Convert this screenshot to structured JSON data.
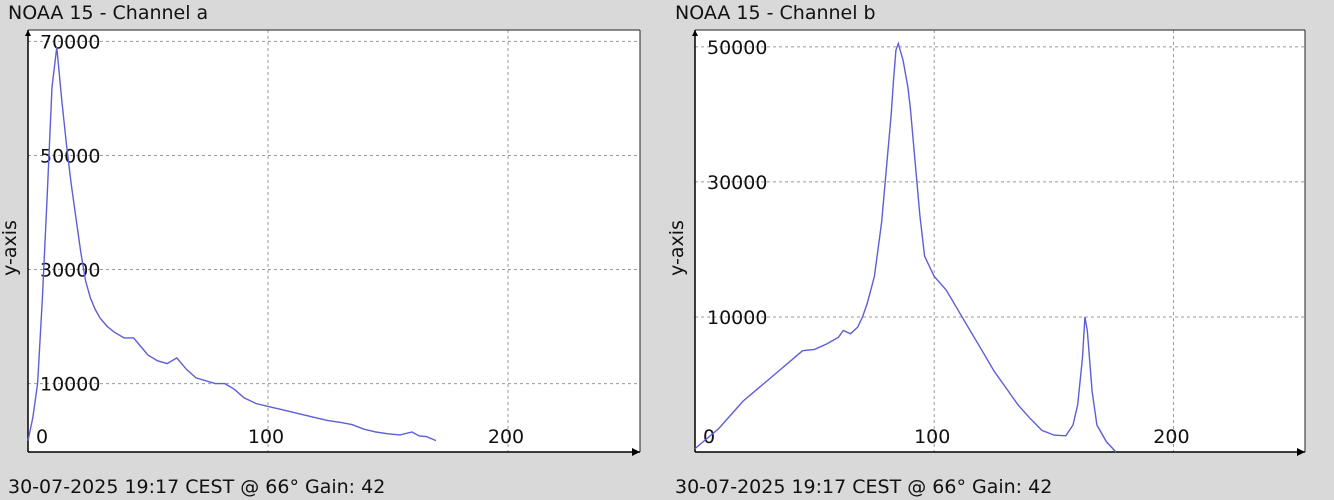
{
  "chart_data": [
    {
      "type": "line",
      "title": "NOAA 15 - Channel a",
      "xlabel": "",
      "ylabel": "y-axis",
      "footer": "30-07-2025 19:17 CEST @ 66° Gain: 42",
      "xlim": [
        0,
        255
      ],
      "ylim": [
        -2000,
        72000
      ],
      "x_ticks": [
        0,
        100,
        200
      ],
      "y_ticks": [
        10000,
        30000,
        50000,
        70000
      ],
      "grid": true,
      "line_color": "#5d5fd6",
      "series": [
        {
          "x": [
            0,
            2,
            4,
            6,
            8,
            10,
            12,
            14,
            16,
            18,
            20,
            22,
            24,
            26,
            28,
            30,
            33,
            36,
            40,
            44,
            47,
            50,
            54,
            58,
            62,
            66,
            70,
            74,
            78,
            82,
            86,
            90,
            95,
            100,
            105,
            110,
            115,
            120,
            125,
            130,
            135,
            140,
            145,
            150,
            155,
            160,
            163,
            166,
            170
          ],
          "y": [
            0,
            4000,
            10000,
            25000,
            43000,
            62000,
            69000,
            60000,
            52000,
            45000,
            39000,
            33000,
            28000,
            25000,
            23000,
            21500,
            20000,
            19000,
            18000,
            18000,
            16500,
            15000,
            14000,
            13500,
            14500,
            12500,
            11000,
            10500,
            10000,
            10000,
            9000,
            7500,
            6500,
            6000,
            5500,
            5000,
            4500,
            4000,
            3500,
            3200,
            2800,
            2000,
            1500,
            1200,
            1000,
            1500,
            800,
            700,
            0
          ]
        }
      ]
    },
    {
      "type": "line",
      "title": "NOAA 15 - Channel b",
      "xlabel": "",
      "ylabel": "y-axis",
      "footer": "30-07-2025 19:17 CEST @ 66° Gain: 42",
      "xlim": [
        0,
        255
      ],
      "ylim": [
        -10000,
        52500
      ],
      "x_ticks": [
        0,
        100,
        200
      ],
      "y_ticks": [
        10000,
        30000,
        50000
      ],
      "grid": true,
      "line_color": "#5d5fd6",
      "series": [
        {
          "x": [
            0,
            5,
            10,
            15,
            20,
            25,
            30,
            35,
            40,
            45,
            50,
            55,
            60,
            62,
            65,
            68,
            70,
            72,
            75,
            78,
            80,
            82,
            83,
            84,
            85,
            87,
            89,
            90,
            92,
            94,
            96,
            100,
            105,
            110,
            115,
            120,
            125,
            130,
            135,
            140,
            145,
            148,
            150,
            155,
            158,
            160,
            162,
            163,
            164,
            166,
            168,
            172,
            176
          ],
          "y": [
            -9500,
            -8000,
            -6500,
            -4500,
            -2500,
            -1000,
            500,
            2000,
            3500,
            5000,
            5200,
            6000,
            7000,
            8000,
            7500,
            8500,
            10000,
            12000,
            16000,
            24000,
            32000,
            40000,
            45000,
            49500,
            50500,
            48000,
            44000,
            41000,
            33000,
            25000,
            19000,
            16000,
            14000,
            11000,
            8000,
            5000,
            2000,
            -500,
            -3000,
            -5000,
            -6800,
            -7200,
            -7500,
            -7600,
            -6000,
            -3000,
            4000,
            10000,
            8000,
            -1000,
            -6000,
            -8500,
            -10000
          ]
        }
      ]
    }
  ]
}
